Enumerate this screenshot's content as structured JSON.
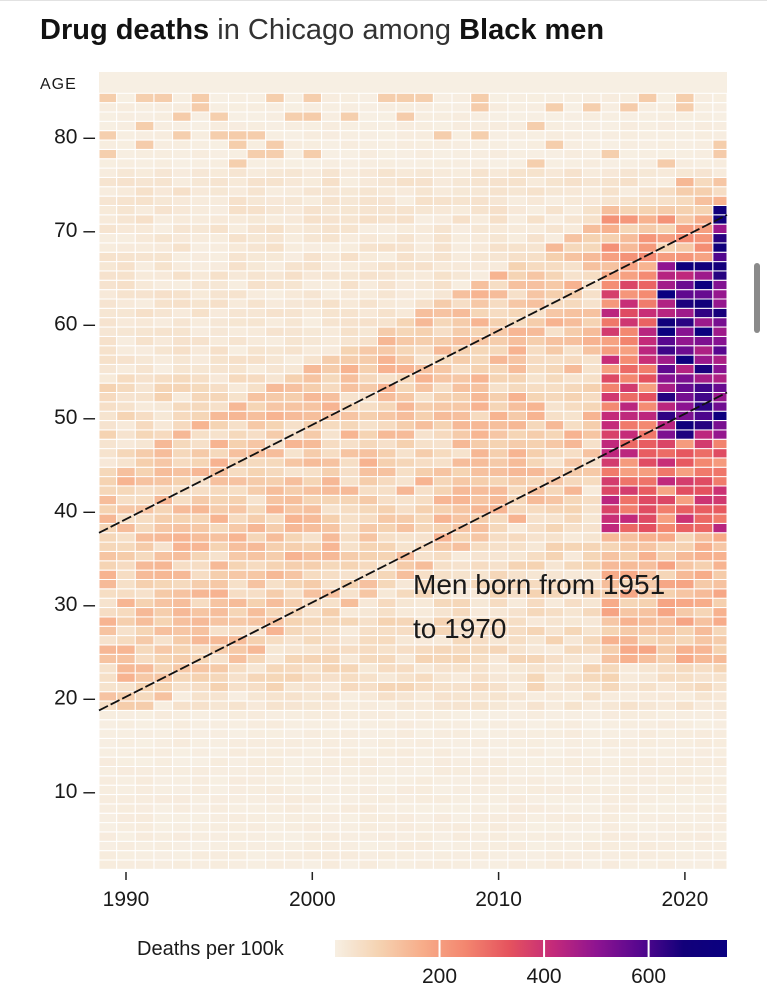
{
  "title": {
    "part1": "Drug deaths",
    "part2": " in Chicago among ",
    "part3": "Black men"
  },
  "chart_data": {
    "type": "heatmap",
    "title": "Drug deaths in Chicago among Black men",
    "x_field": "year",
    "y_field": "age",
    "value_field": "deaths_per_100k",
    "ylabel": "AGE",
    "x_range": [
      1988,
      2022
    ],
    "y_range": [
      0,
      84
    ],
    "xticks": [
      1990,
      2000,
      2010,
      2020
    ],
    "yticks": [
      10,
      20,
      30,
      40,
      50,
      60,
      70,
      80
    ],
    "ytick_labels": [
      "10 –",
      "20 –",
      "30 –",
      "40 –",
      "50 –",
      "60 –",
      "70 –",
      "80 –"
    ],
    "legend": {
      "title": "Deaths per 100k",
      "ticks": [
        200,
        400,
        600
      ],
      "max": 750,
      "colors": [
        "#f7efe3",
        "#f5d3b2",
        "#f7ad8a",
        "#f3866f",
        "#e5535e",
        "#c42a7a",
        "#8e1491",
        "#56078f",
        "#12007a",
        "#0a0080"
      ]
    },
    "annotation": {
      "line1": "Men born from 1951",
      "line2": "to 1970",
      "cohort_birth_years": [
        1951,
        1970
      ]
    },
    "grid": false,
    "values_by_region_note": "",
    "regions": [
      {
        "years": [
          1988,
          2015
        ],
        "ages": [
          1,
          18
        ],
        "deaths_per_100k": 0
      },
      {
        "years": [
          1988,
          2015
        ],
        "ages": [
          19,
          45
        ],
        "deaths_per_100k": 60
      },
      {
        "years": [
          1988,
          2015
        ],
        "ages": [
          46,
          60
        ],
        "deaths_per_100k": 40
      },
      {
        "years": [
          2016,
          2022
        ],
        "ages": [
          40,
          62
        ],
        "deaths_per_100k": 380
      },
      {
        "years": [
          2019,
          2022
        ],
        "ages": [
          48,
          66
        ],
        "deaths_per_100k": 620
      }
    ]
  }
}
